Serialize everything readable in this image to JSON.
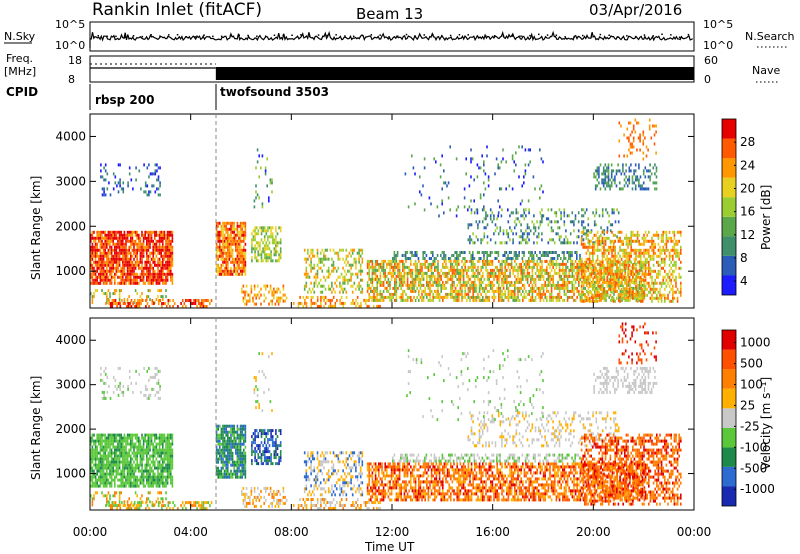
{
  "header": {
    "station": "Rankin Inlet (fitACF)",
    "beam": "Beam 13",
    "date": "03/Apr/2016"
  },
  "top_panels": {
    "nsky_label": "N.Sky",
    "nsearch_label": "N.Search",
    "nsky_ticks": [
      "10^5",
      "10^0"
    ],
    "nsearch_ticks": [
      "10^5",
      "10^0"
    ],
    "freq_label": "Freq.",
    "freq_unit": "[MHz]",
    "freq_ticks": [
      "18",
      "8"
    ],
    "nave_label": "Nave",
    "nave_ticks": [
      "60",
      "0"
    ],
    "cpid_label": "CPID",
    "cpid_segments": [
      {
        "name": "rbsp 200",
        "start_hour": 0,
        "end_hour": 5
      },
      {
        "name": "twofsound 3503",
        "start_hour": 5,
        "end_hour": 24
      }
    ]
  },
  "chart_data": [
    {
      "type": "heatmap",
      "title": "",
      "ylabel": "Slant Range [km]",
      "xlabel": "",
      "xlim": [
        0,
        24
      ],
      "ylim": [
        180,
        4500
      ],
      "yticks": [
        1000,
        2000,
        3000,
        4000
      ],
      "colorbar": {
        "label": "Power [dB]",
        "ticks": [
          "28",
          "24",
          "20",
          "16",
          "12",
          "8",
          "4"
        ],
        "colors": [
          "#1c1cff",
          "#2a5cb8",
          "#3f8f6a",
          "#5aa84a",
          "#9acd32",
          "#e8d020",
          "#ff9800",
          "#ff5a00",
          "#e60000"
        ]
      }
    },
    {
      "type": "heatmap",
      "title": "",
      "ylabel": "Slant Range [km]",
      "xlabel": "Time UT",
      "xlim": [
        0,
        24
      ],
      "ylim": [
        180,
        4500
      ],
      "yticks": [
        1000,
        2000,
        3000,
        4000
      ],
      "xticks": [
        "00:00",
        "04:00",
        "08:00",
        "12:00",
        "16:00",
        "20:00",
        "00:00"
      ],
      "colorbar": {
        "label": "Velocity [m s⁻¹]",
        "ticks": [
          "1000",
          "500",
          "100",
          "25",
          "-25",
          "-100",
          "-500",
          "-1000"
        ],
        "colors": [
          "#1a2ab0",
          "#2e6bd0",
          "#1e8a4a",
          "#5ac83a",
          "#c8c8c8",
          "#ffb000",
          "#ff8000",
          "#ff5000",
          "#e00000"
        ]
      }
    }
  ],
  "scatter_regions": [
    {
      "t0": 0.0,
      "t1": 3.3,
      "r0": 700,
      "r1": 1900,
      "density": 0.85,
      "pw": [
        6,
        8,
        8,
        7
      ],
      "vel": [
        3,
        3,
        2,
        3
      ]
    },
    {
      "t0": 0.0,
      "t1": 3.0,
      "r0": 300,
      "r1": 600,
      "density": 0.25,
      "pw": [
        3,
        5,
        6
      ],
      "vel": [
        3,
        5,
        6
      ]
    },
    {
      "t0": 0.4,
      "t1": 2.8,
      "r0": 2700,
      "r1": 3400,
      "density": 0.18,
      "pw": [
        0,
        1,
        2
      ],
      "vel": [
        4,
        3,
        4
      ]
    },
    {
      "t0": 0.6,
      "t1": 4.8,
      "r0": 200,
      "r1": 380,
      "density": 0.45,
      "pw": [
        7,
        8,
        6
      ],
      "vel": [
        5,
        6,
        3
      ]
    },
    {
      "t0": 5.0,
      "t1": 6.2,
      "r0": 900,
      "r1": 2100,
      "density": 0.8,
      "pw": [
        6,
        7,
        8,
        5
      ],
      "vel": [
        2,
        1,
        3,
        2
      ]
    },
    {
      "t0": 6.4,
      "t1": 7.6,
      "r0": 1200,
      "r1": 2000,
      "density": 0.55,
      "pw": [
        4,
        5,
        3
      ],
      "vel": [
        1,
        0,
        2
      ]
    },
    {
      "t0": 6.0,
      "t1": 7.8,
      "r0": 250,
      "r1": 700,
      "density": 0.45,
      "pw": [
        6,
        7,
        5
      ],
      "vel": [
        6,
        5,
        4
      ]
    },
    {
      "t0": 8.5,
      "t1": 10.8,
      "r0": 500,
      "r1": 1500,
      "density": 0.4,
      "pw": [
        3,
        4,
        5,
        6
      ],
      "vel": [
        4,
        5,
        1
      ]
    },
    {
      "t0": 8.0,
      "t1": 11.5,
      "r0": 200,
      "r1": 450,
      "density": 0.35,
      "pw": [
        5,
        6,
        7
      ],
      "vel": [
        6,
        5,
        4
      ]
    },
    {
      "t0": 11.0,
      "t1": 22.0,
      "r0": 380,
      "r1": 1250,
      "density": 0.65,
      "pw": [
        4,
        5,
        6,
        7,
        3
      ],
      "vel": [
        6,
        7,
        6,
        5,
        8
      ]
    },
    {
      "t0": 12.0,
      "t1": 19.5,
      "r0": 1250,
      "r1": 1450,
      "density": 0.5,
      "pw": [
        2,
        1,
        3
      ],
      "vel": [
        4,
        4,
        3
      ]
    },
    {
      "t0": 15.0,
      "t1": 21.0,
      "r0": 1600,
      "r1": 2400,
      "density": 0.22,
      "pw": [
        1,
        2,
        4
      ],
      "vel": [
        4,
        5,
        4
      ]
    },
    {
      "t0": 19.5,
      "t1": 23.5,
      "r0": 300,
      "r1": 1900,
      "density": 0.5,
      "pw": [
        5,
        6,
        7,
        4
      ],
      "vel": [
        6,
        7,
        8,
        6
      ]
    },
    {
      "t0": 20.0,
      "t1": 22.5,
      "r0": 2800,
      "r1": 3400,
      "density": 0.35,
      "pw": [
        1,
        2,
        3
      ],
      "vel": [
        4,
        4,
        4
      ]
    },
    {
      "t0": 6.5,
      "t1": 7.2,
      "r0": 2400,
      "r1": 3800,
      "density": 0.1,
      "pw": [
        0,
        2,
        4
      ],
      "vel": [
        4,
        3,
        5
      ]
    },
    {
      "t0": 12.5,
      "t1": 18.0,
      "r0": 2200,
      "r1": 3800,
      "density": 0.05,
      "pw": [
        0,
        1,
        3
      ],
      "vel": [
        4,
        4,
        3
      ]
    },
    {
      "t0": 21.0,
      "t1": 22.5,
      "r0": 3500,
      "r1": 4400,
      "density": 0.2,
      "pw": [
        6,
        7
      ],
      "vel": [
        7,
        8
      ]
    }
  ]
}
